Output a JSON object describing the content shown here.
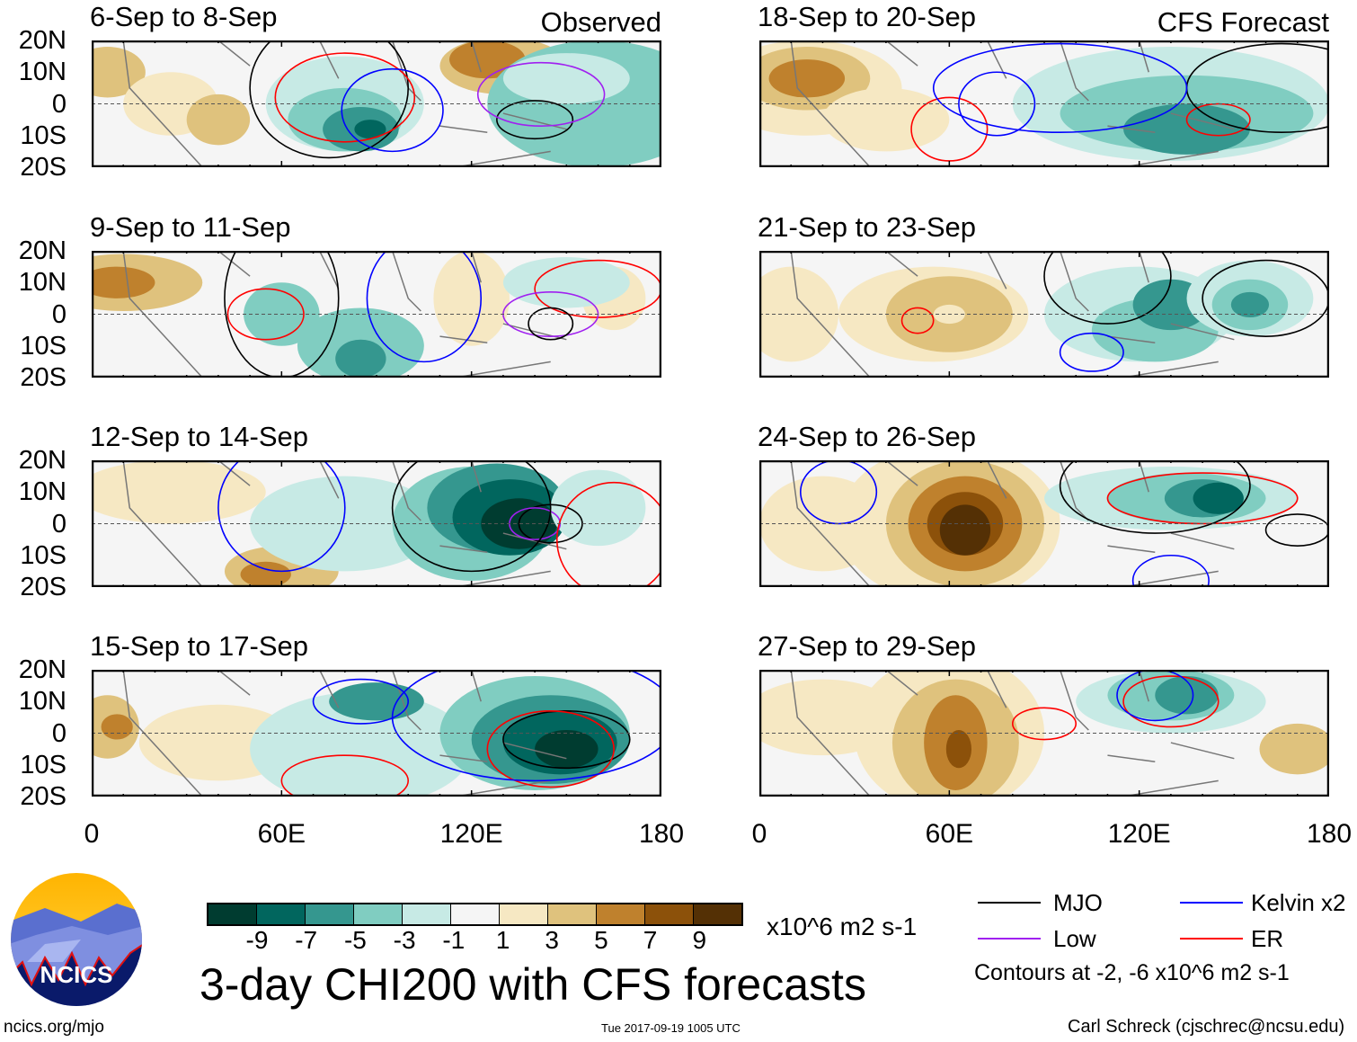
{
  "panels": [
    {
      "title": "6-Sep to 8-Sep",
      "label": "Observed"
    },
    {
      "title": "9-Sep to 11-Sep"
    },
    {
      "title": "12-Sep to 14-Sep"
    },
    {
      "title": "15-Sep to 17-Sep"
    },
    {
      "title": "18-Sep to 20-Sep",
      "label": "CFS Forecast"
    },
    {
      "title": "21-Sep to 23-Sep"
    },
    {
      "title": "24-Sep to 26-Sep"
    },
    {
      "title": "27-Sep to 29-Sep"
    }
  ],
  "y_ticks": [
    "20N",
    "10N",
    "0",
    "10S",
    "20S"
  ],
  "x_ticks": [
    "0",
    "60E",
    "120E",
    "180"
  ],
  "colorbar": {
    "labels": [
      "-9",
      "-7",
      "-5",
      "-3",
      "-1",
      "1",
      "3",
      "5",
      "7",
      "9"
    ],
    "colors": [
      "#003c30",
      "#01665e",
      "#35978f",
      "#80cdc1",
      "#c7eae5",
      "#f5f5f5",
      "#f6e8c3",
      "#dfc27d",
      "#bf812d",
      "#8c510a",
      "#543005"
    ],
    "units": "x10^6 m2 s-1"
  },
  "title": "3-day CHI200 with CFS forecasts",
  "legend": {
    "items": [
      {
        "label": "MJO",
        "color": "#000000"
      },
      {
        "label": "Kelvin x2",
        "color": "#0000ff"
      },
      {
        "label": "Low",
        "color": "#a020f0"
      },
      {
        "label": "ER",
        "color": "#ff0000"
      }
    ],
    "contours_note": "Contours at -2, -6 x10^6 m2 s-1"
  },
  "logo": {
    "text": "NCICS"
  },
  "footer": {
    "url": "ncics.org/mjo",
    "timestamp": "Tue 2017-09-19 1005 UTC",
    "author": "Carl Schreck (cjschrec@ncsu.edu)"
  }
}
